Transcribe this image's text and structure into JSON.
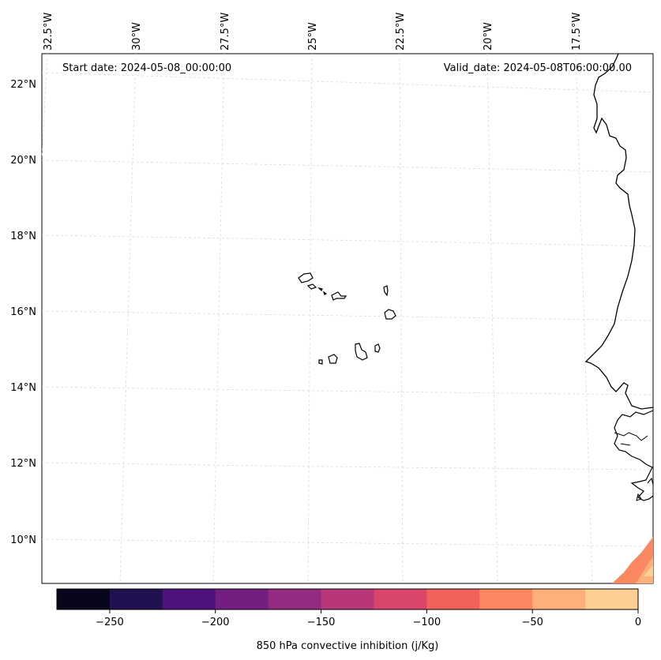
{
  "header": {
    "start_date": "Start date: 2024-05-08_00:00:00",
    "valid_date": "Valid_date: 2024-05-08T06:00:00.00"
  },
  "longitude_labels": [
    "32.5°W",
    "30°W",
    "27.5°W",
    "25°W",
    "22.5°W",
    "20°W",
    "17.5°W"
  ],
  "latitude_labels": [
    "22°N",
    "20°N",
    "18°N",
    "16°N",
    "14°N",
    "12°N",
    "10°N"
  ],
  "colorbar": {
    "label": "850 hPa convective inhibition (j/Kg)",
    "ticks": [
      "−250",
      "−200",
      "−150",
      "−100",
      "−50",
      "0"
    ],
    "levels": [
      -275,
      -250,
      -225,
      -200,
      -175,
      -150,
      -125,
      -100,
      -75,
      -50,
      -25,
      0
    ],
    "colors": [
      "#07061c",
      "#221150",
      "#4f127b",
      "#721f81",
      "#932b80",
      "#b73779",
      "#da4669",
      "#f2605c",
      "#fb8861",
      "#feb07a",
      "#fecf92",
      "#fde6a1"
    ]
  }
}
